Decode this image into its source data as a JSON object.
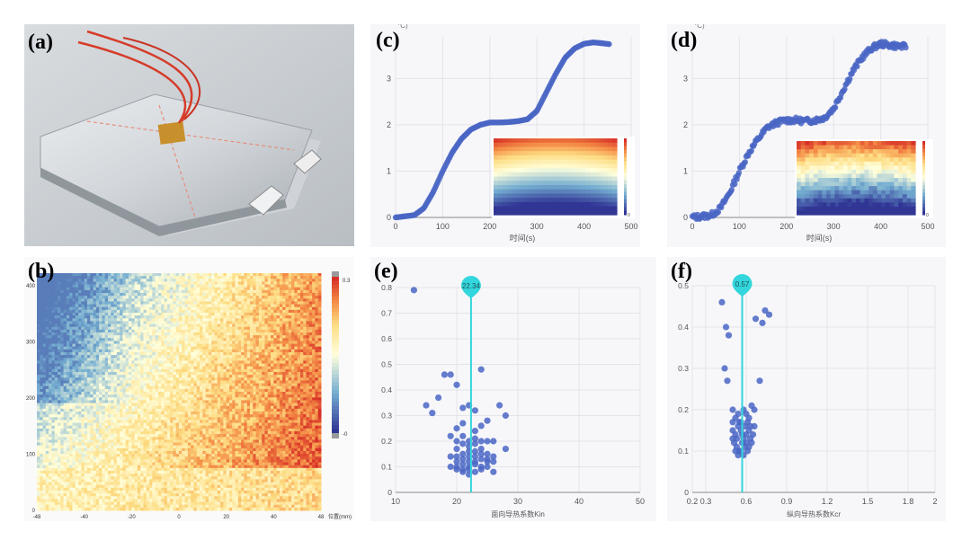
{
  "figure": {
    "labels": {
      "a": "(a)",
      "b": "(b)",
      "c": "(c)",
      "d": "(d)",
      "e": "(e)",
      "f": "(f)"
    },
    "colors": {
      "marker": "#4a66c4",
      "guide": "#33d6dc",
      "pale": "#f7f7fa",
      "grid": "#e3e3ea",
      "axis": "#555555"
    }
  },
  "chart_data": [
    {
      "id": "c",
      "type": "scatter",
      "ylabel_fragment": "°C)",
      "xlabel": "时间(s)",
      "xlim": [
        0,
        500
      ],
      "ylim": [
        0,
        3.9
      ],
      "xticks": [
        0,
        100,
        200,
        300,
        400,
        500
      ],
      "yticks": [
        0,
        1,
        2,
        3
      ],
      "curve": {
        "x": [
          0,
          40,
          60,
          80,
          100,
          120,
          140,
          160,
          180,
          200,
          220,
          240,
          260,
          280,
          300,
          320,
          340,
          360,
          380,
          400,
          420,
          440,
          455
        ],
        "y": [
          0,
          0.05,
          0.2,
          0.55,
          1.0,
          1.4,
          1.7,
          1.9,
          2.0,
          2.05,
          2.05,
          2.06,
          2.08,
          2.12,
          2.3,
          2.7,
          3.1,
          3.45,
          3.65,
          3.75,
          3.78,
          3.76,
          3.74
        ]
      },
      "noise": 0.0
    },
    {
      "id": "d",
      "type": "scatter",
      "ylabel_fragment": "°C)",
      "xlabel": "时间(s)",
      "xlim": [
        0,
        500
      ],
      "ylim": [
        0,
        3.9
      ],
      "xticks": [
        0,
        100,
        200,
        300,
        400,
        500
      ],
      "yticks": [
        0,
        1,
        2,
        3
      ],
      "curve": {
        "x": [
          0,
          40,
          60,
          80,
          100,
          120,
          140,
          160,
          180,
          200,
          220,
          240,
          260,
          280,
          300,
          320,
          340,
          360,
          380,
          400,
          420,
          440,
          455
        ],
        "y": [
          0,
          0.05,
          0.2,
          0.55,
          1.0,
          1.4,
          1.7,
          1.95,
          2.05,
          2.1,
          2.1,
          2.08,
          2.1,
          2.15,
          2.35,
          2.75,
          3.15,
          3.45,
          3.65,
          3.75,
          3.72,
          3.7,
          3.68
        ]
      },
      "noise": 0.06
    },
    {
      "id": "e",
      "type": "scatter",
      "xlabel": "面向导热系数Kin",
      "marker_value": "22.34",
      "marker_x": 22.34,
      "xlim": [
        10,
        50
      ],
      "ylim": [
        0,
        0.8
      ],
      "xticks": [
        10,
        20,
        30,
        40,
        50
      ],
      "yticks": [
        0,
        0.1,
        0.2,
        0.3,
        0.4,
        0.5,
        0.6,
        0.7,
        0.8
      ],
      "points": [
        [
          13,
          0.79
        ],
        [
          15,
          0.34
        ],
        [
          16,
          0.31
        ],
        [
          17,
          0.37
        ],
        [
          18,
          0.46
        ],
        [
          19,
          0.46
        ],
        [
          20,
          0.42
        ],
        [
          24,
          0.48
        ],
        [
          21,
          0.33
        ],
        [
          22,
          0.34
        ],
        [
          23,
          0.32
        ],
        [
          27,
          0.34
        ],
        [
          28,
          0.3
        ],
        [
          20,
          0.25
        ],
        [
          21,
          0.22
        ],
        [
          22,
          0.2
        ],
        [
          23,
          0.21
        ],
        [
          24,
          0.2
        ],
        [
          25,
          0.2
        ],
        [
          26,
          0.2
        ],
        [
          19,
          0.22
        ],
        [
          20,
          0.17
        ],
        [
          21,
          0.15
        ],
        [
          22,
          0.14
        ],
        [
          23,
          0.16
        ],
        [
          24,
          0.15
        ],
        [
          25,
          0.13
        ],
        [
          26,
          0.12
        ],
        [
          20,
          0.12
        ],
        [
          21,
          0.11
        ],
        [
          22,
          0.1
        ],
        [
          23,
          0.12
        ],
        [
          24,
          0.1
        ],
        [
          19,
          0.1
        ],
        [
          20,
          0.09
        ],
        [
          21,
          0.08
        ],
        [
          22,
          0.07
        ],
        [
          23,
          0.08
        ],
        [
          24,
          0.09
        ],
        [
          25,
          0.1
        ],
        [
          26,
          0.08
        ],
        [
          28,
          0.17
        ],
        [
          22,
          0.18
        ],
        [
          23,
          0.19
        ],
        [
          21,
          0.19
        ],
        [
          20,
          0.14
        ],
        [
          19,
          0.14
        ],
        [
          24,
          0.17
        ],
        [
          25,
          0.15
        ],
        [
          22,
          0.12
        ],
        [
          23,
          0.11
        ],
        [
          21,
          0.13
        ],
        [
          20,
          0.1
        ],
        [
          22,
          0.09
        ],
        [
          23,
          0.14
        ],
        [
          24,
          0.13
        ],
        [
          21,
          0.09
        ],
        [
          25,
          0.12
        ],
        [
          26,
          0.14
        ],
        [
          22,
          0.16
        ],
        [
          20,
          0.2
        ],
        [
          23,
          0.24
        ],
        [
          24,
          0.26
        ],
        [
          25,
          0.28
        ],
        [
          21,
          0.27
        ]
      ]
    },
    {
      "id": "f",
      "type": "scatter",
      "xlabel": "纵向导热系数Kcr",
      "marker_value": "0.57",
      "marker_x": 0.57,
      "xlim": [
        0.2,
        2.0
      ],
      "ylim": [
        0,
        0.5
      ],
      "xticks": [
        0.2,
        0.3,
        0.6,
        0.9,
        1.2,
        1.5,
        1.8,
        2.0
      ],
      "xtick_labels": [
        "0.2",
        "0.3",
        "0.6",
        "0.9",
        "1.2",
        "1.5",
        "1.8",
        "2"
      ],
      "yticks": [
        0,
        0.1,
        0.2,
        0.3,
        0.4,
        0.5
      ],
      "points": [
        [
          0.42,
          0.46
        ],
        [
          0.45,
          0.4
        ],
        [
          0.47,
          0.38
        ],
        [
          0.44,
          0.3
        ],
        [
          0.46,
          0.27
        ],
        [
          0.67,
          0.42
        ],
        [
          0.72,
          0.41
        ],
        [
          0.74,
          0.44
        ],
        [
          0.77,
          0.43
        ],
        [
          0.7,
          0.27
        ],
        [
          0.5,
          0.2
        ],
        [
          0.52,
          0.18
        ],
        [
          0.54,
          0.19
        ],
        [
          0.56,
          0.17
        ],
        [
          0.58,
          0.2
        ],
        [
          0.6,
          0.19
        ],
        [
          0.62,
          0.18
        ],
        [
          0.64,
          0.21
        ],
        [
          0.66,
          0.2
        ],
        [
          0.5,
          0.15
        ],
        [
          0.52,
          0.14
        ],
        [
          0.54,
          0.16
        ],
        [
          0.56,
          0.15
        ],
        [
          0.58,
          0.13
        ],
        [
          0.6,
          0.14
        ],
        [
          0.62,
          0.15
        ],
        [
          0.64,
          0.12
        ],
        [
          0.51,
          0.12
        ],
        [
          0.53,
          0.11
        ],
        [
          0.55,
          0.1
        ],
        [
          0.57,
          0.12
        ],
        [
          0.59,
          0.11
        ],
        [
          0.61,
          0.1
        ],
        [
          0.63,
          0.13
        ],
        [
          0.52,
          0.1
        ],
        [
          0.54,
          0.09
        ],
        [
          0.56,
          0.1
        ],
        [
          0.58,
          0.09
        ],
        [
          0.6,
          0.12
        ],
        [
          0.5,
          0.17
        ],
        [
          0.66,
          0.16
        ],
        [
          0.65,
          0.14
        ],
        [
          0.53,
          0.13
        ],
        [
          0.55,
          0.17
        ],
        [
          0.59,
          0.16
        ],
        [
          0.61,
          0.17
        ],
        [
          0.63,
          0.16
        ],
        [
          0.57,
          0.14
        ],
        [
          0.62,
          0.11
        ],
        [
          0.5,
          0.13
        ]
      ]
    }
  ],
  "heatmap_b": {
    "xticks": [
      "-48",
      "-40",
      "-20",
      "0",
      "20",
      "40",
      "48"
    ],
    "yticks": [
      "400",
      "300",
      "200",
      "100",
      "0"
    ],
    "xlabel": "位置(mm)",
    "colorbar": {
      "max": "0.3",
      "min": "-0"
    }
  },
  "inset_c": {
    "ticks": [
      "0"
    ]
  },
  "inset_d": {
    "ticks": [
      "0"
    ]
  }
}
